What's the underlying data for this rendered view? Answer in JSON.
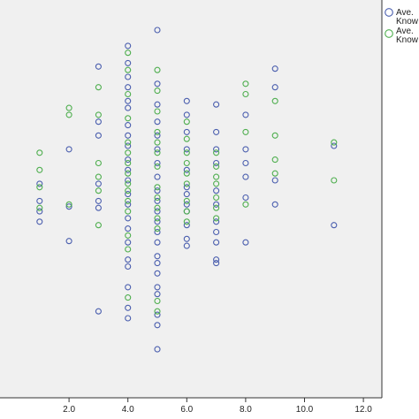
{
  "chart_data": {
    "type": "scatter",
    "title": "",
    "xlabel": "",
    "ylabel": "",
    "xlim": [
      0,
      12.5
    ],
    "ylim": [
      0,
      1
    ],
    "x_ticks": [
      "2.0",
      "4.0",
      "6.0",
      "8.0",
      "10.0",
      "12.0"
    ],
    "x_tick_values": [
      2,
      4,
      6,
      8,
      10,
      12
    ],
    "grid": false,
    "legend_placement": "top-right",
    "plot_background": "#f0f0f0",
    "series": [
      {
        "name": "Ave.\nKnow",
        "color": "#4a5eae",
        "points": [
          [
            1,
            0.554
          ],
          [
            1,
            0.504
          ],
          [
            1,
            0.474
          ],
          [
            1,
            0.444
          ],
          [
            2,
            0.654
          ],
          [
            2,
            0.388
          ],
          [
            2,
            0.488
          ],
          [
            3,
            0.894
          ],
          [
            3,
            0.734
          ],
          [
            3,
            0.694
          ],
          [
            3,
            0.554
          ],
          [
            3,
            0.504
          ],
          [
            3,
            0.484
          ],
          [
            3,
            0.184
          ],
          [
            4,
            0.954
          ],
          [
            4,
            0.904
          ],
          [
            4,
            0.864
          ],
          [
            4,
            0.834
          ],
          [
            4,
            0.794
          ],
          [
            4,
            0.774
          ],
          [
            4,
            0.724
          ],
          [
            4,
            0.694
          ],
          [
            4,
            0.664
          ],
          [
            4,
            0.624
          ],
          [
            4,
            0.594
          ],
          [
            4,
            0.564
          ],
          [
            4,
            0.524
          ],
          [
            4,
            0.494
          ],
          [
            4,
            0.454
          ],
          [
            4,
            0.424
          ],
          [
            4,
            0.384
          ],
          [
            4,
            0.334
          ],
          [
            4,
            0.314
          ],
          [
            4,
            0.254
          ],
          [
            4,
            0.194
          ],
          [
            4,
            0.164
          ],
          [
            5,
            1.0
          ],
          [
            5,
            0.844
          ],
          [
            5,
            0.784
          ],
          [
            5,
            0.734
          ],
          [
            5,
            0.694
          ],
          [
            5,
            0.654
          ],
          [
            5,
            0.614
          ],
          [
            5,
            0.574
          ],
          [
            5,
            0.534
          ],
          [
            5,
            0.504
          ],
          [
            5,
            0.474
          ],
          [
            5,
            0.444
          ],
          [
            5,
            0.414
          ],
          [
            5,
            0.384
          ],
          [
            5,
            0.344
          ],
          [
            5,
            0.324
          ],
          [
            5,
            0.294
          ],
          [
            5,
            0.254
          ],
          [
            5,
            0.234
          ],
          [
            5,
            0.174
          ],
          [
            5,
            0.144
          ],
          [
            5,
            0.074
          ],
          [
            6,
            0.794
          ],
          [
            6,
            0.754
          ],
          [
            6,
            0.704
          ],
          [
            6,
            0.654
          ],
          [
            6,
            0.594
          ],
          [
            6,
            0.544
          ],
          [
            6,
            0.524
          ],
          [
            6,
            0.494
          ],
          [
            6,
            0.474
          ],
          [
            6,
            0.434
          ],
          [
            6,
            0.394
          ],
          [
            6,
            0.374
          ],
          [
            7,
            0.784
          ],
          [
            7,
            0.704
          ],
          [
            7,
            0.654
          ],
          [
            7,
            0.614
          ],
          [
            7,
            0.534
          ],
          [
            7,
            0.494
          ],
          [
            7,
            0.444
          ],
          [
            7,
            0.414
          ],
          [
            7,
            0.384
          ],
          [
            7,
            0.334
          ],
          [
            7,
            0.324
          ],
          [
            8,
            0.754
          ],
          [
            8,
            0.654
          ],
          [
            8,
            0.614
          ],
          [
            8,
            0.574
          ],
          [
            8,
            0.514
          ],
          [
            8,
            0.384
          ],
          [
            9,
            0.888
          ],
          [
            9,
            0.834
          ],
          [
            9,
            0.564
          ],
          [
            9,
            0.494
          ],
          [
            11,
            0.664
          ],
          [
            11,
            0.434
          ]
        ]
      },
      {
        "name": "Ave.\nKnow",
        "color": "#4eae4e",
        "points": [
          [
            1,
            0.644
          ],
          [
            1,
            0.594
          ],
          [
            1,
            0.544
          ],
          [
            1,
            0.484
          ],
          [
            2,
            0.774
          ],
          [
            2,
            0.754
          ],
          [
            2,
            0.494
          ],
          [
            3,
            0.834
          ],
          [
            3,
            0.754
          ],
          [
            3,
            0.614
          ],
          [
            3,
            0.574
          ],
          [
            3,
            0.534
          ],
          [
            3,
            0.434
          ],
          [
            4,
            0.934
          ],
          [
            4,
            0.884
          ],
          [
            4,
            0.814
          ],
          [
            4,
            0.744
          ],
          [
            4,
            0.674
          ],
          [
            4,
            0.644
          ],
          [
            4,
            0.614
          ],
          [
            4,
            0.584
          ],
          [
            4,
            0.554
          ],
          [
            4,
            0.534
          ],
          [
            4,
            0.504
          ],
          [
            4,
            0.474
          ],
          [
            4,
            0.404
          ],
          [
            4,
            0.364
          ],
          [
            4,
            0.224
          ],
          [
            5,
            0.884
          ],
          [
            5,
            0.824
          ],
          [
            5,
            0.764
          ],
          [
            5,
            0.704
          ],
          [
            5,
            0.674
          ],
          [
            5,
            0.644
          ],
          [
            5,
            0.604
          ],
          [
            5,
            0.544
          ],
          [
            5,
            0.514
          ],
          [
            5,
            0.484
          ],
          [
            5,
            0.454
          ],
          [
            5,
            0.424
          ],
          [
            5,
            0.214
          ],
          [
            5,
            0.184
          ],
          [
            6,
            0.734
          ],
          [
            6,
            0.684
          ],
          [
            6,
            0.644
          ],
          [
            6,
            0.614
          ],
          [
            6,
            0.584
          ],
          [
            6,
            0.554
          ],
          [
            6,
            0.504
          ],
          [
            6,
            0.474
          ],
          [
            6,
            0.444
          ],
          [
            7,
            0.644
          ],
          [
            7,
            0.604
          ],
          [
            7,
            0.574
          ],
          [
            7,
            0.554
          ],
          [
            7,
            0.514
          ],
          [
            7,
            0.484
          ],
          [
            7,
            0.454
          ],
          [
            8,
            0.844
          ],
          [
            8,
            0.814
          ],
          [
            8,
            0.704
          ],
          [
            8,
            0.494
          ],
          [
            9,
            0.794
          ],
          [
            9,
            0.694
          ],
          [
            9,
            0.624
          ],
          [
            9,
            0.584
          ],
          [
            11,
            0.674
          ],
          [
            11,
            0.564
          ]
        ]
      }
    ]
  }
}
